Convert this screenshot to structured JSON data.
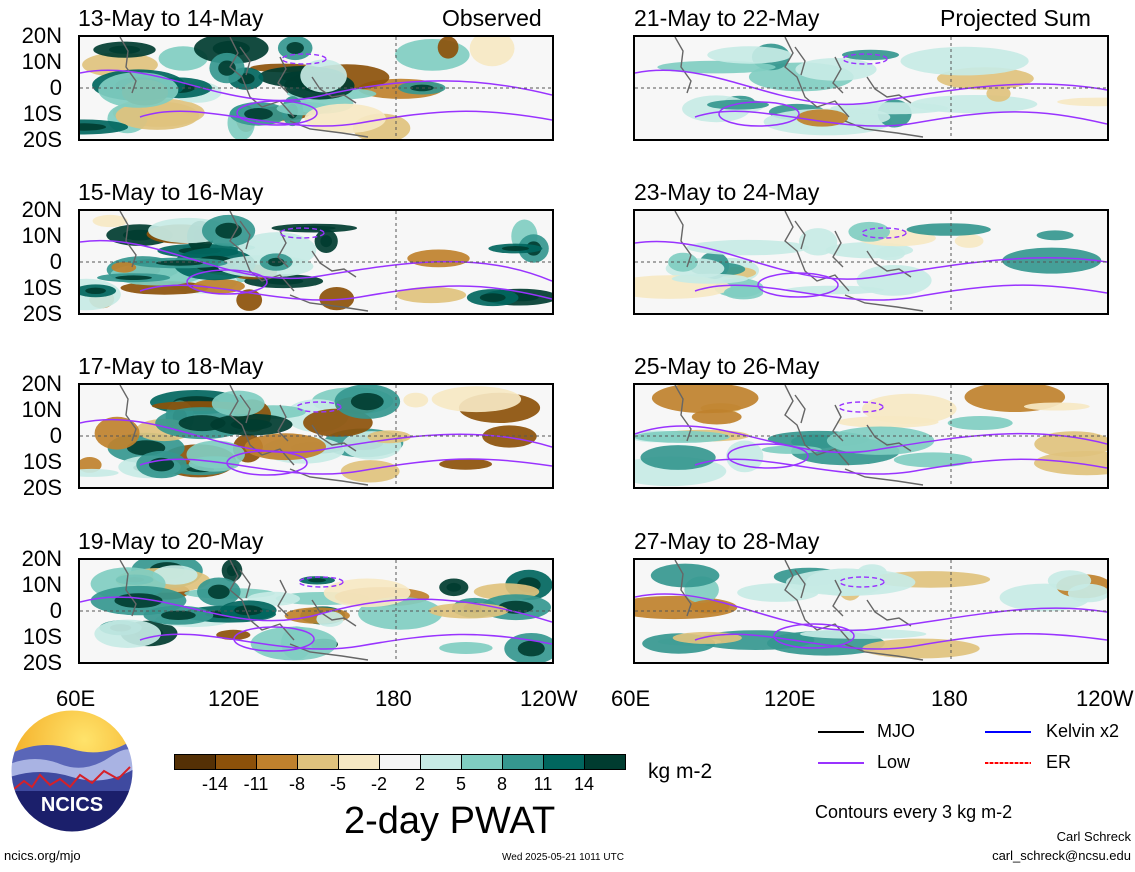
{
  "panel_titles": {
    "obs": [
      "13-May to 14-May",
      "15-May to 16-May",
      "17-May to 18-May",
      "19-May to 20-May"
    ],
    "proj": [
      "21-May to 22-May",
      "23-May to 24-May",
      "25-May to 26-May",
      "27-May to 28-May"
    ]
  },
  "headers": {
    "observed": "Observed",
    "projected": "Projected Sum"
  },
  "lat_labels": [
    "20N",
    "10N",
    "0",
    "10S",
    "20S"
  ],
  "lon_labels": [
    "60E",
    "120E",
    "180",
    "120W"
  ],
  "colorbar": {
    "labels": [
      "-14",
      "-11",
      "-8",
      "-5",
      "-2",
      "2",
      "5",
      "8",
      "11",
      "14"
    ],
    "colors": [
      "#543005",
      "#8c510a",
      "#bf812d",
      "#dfc27d",
      "#f6e8c3",
      "#f5f5f5",
      "#c7eae5",
      "#80cdc1",
      "#35978f",
      "#01665e",
      "#003c30"
    ],
    "units": "kg m-2",
    "title": "2-day PWAT"
  },
  "legend": {
    "mjo": "MJO",
    "kelvin": "Kelvin x2",
    "low": "Low",
    "er": "ER",
    "colors": {
      "mjo": "#000000",
      "kelvin": "#0000ff",
      "low": "#9933ff",
      "er": "#ff0000"
    },
    "contours_note": "Contours every 3 kg m-2"
  },
  "credits": {
    "logo_text": "NCICS",
    "url": "ncics.org/mjo",
    "timestamp": "Wed 2025-05-21 1011 UTC",
    "author": "Carl Schreck",
    "email": "carl_schreck@ncsu.edu"
  }
}
